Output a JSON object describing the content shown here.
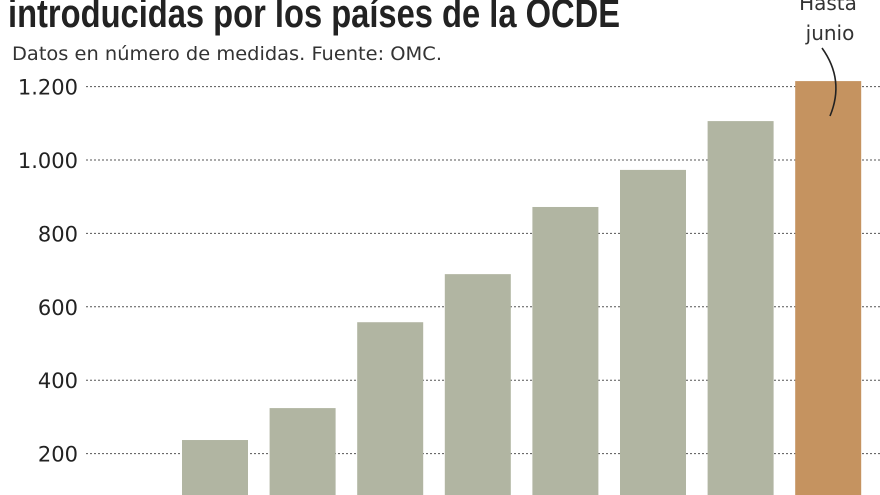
{
  "chart_data": {
    "type": "bar",
    "title": "introducidas por los países de la OCDE",
    "subtitle": "Datos en número de medidas. Fuente: OMC.",
    "values": [
      237,
      324,
      558,
      689,
      872,
      973,
      1106,
      1215
    ],
    "highlight_index": 7,
    "annotation": [
      "Hasta",
      "junio"
    ],
    "yticks": [
      200,
      400,
      600,
      800,
      1000,
      1200
    ],
    "ytick_labels": [
      "200",
      "400",
      "600",
      "800",
      "1.000",
      "1.200"
    ],
    "ylim": [
      0,
      1200
    ],
    "grid": "dotted horizontal",
    "colors": {
      "bar": "#b1b5a2",
      "highlight": "#c59360",
      "grid": "#555555",
      "text": "#222222"
    }
  }
}
